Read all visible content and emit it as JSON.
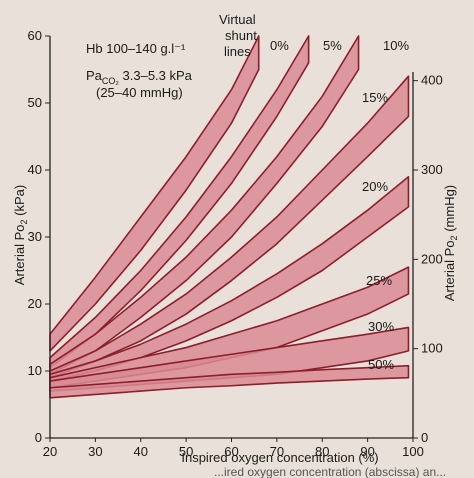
{
  "chart_data": {
    "type": "area",
    "annotations": {
      "hb": "Hb 100–140 g.l⁻¹",
      "paco2_prefix": "Pa",
      "paco2_sub": "CO₂",
      "paco2_value": " 3.3–5.3 kPa",
      "paco2_mmhg": "(25–40 mmHg)",
      "virtual_line1": "Virtual",
      "virtual_line2": "shunt",
      "virtual_line3": "lines"
    },
    "xlabel": "Inspired oxygen concentration (%)",
    "ylabel_left_prefix": "Arterial Po",
    "ylabel_left_sub": "2",
    "ylabel_left_suffix": " (kPa)",
    "ylabel_right_prefix": "Arterial Po",
    "ylabel_right_sub": "2",
    "ylabel_right_suffix": " (mmHg)",
    "caption": "...ired oxygen concentration (abscissa) an...",
    "xlim": [
      20,
      100
    ],
    "ylim_left": [
      0,
      60
    ],
    "ylim_right": [
      0,
      450
    ],
    "x_ticks": [
      "20",
      "30",
      "40",
      "50",
      "60",
      "70",
      "80",
      "90",
      "100"
    ],
    "y_left_ticks": [
      "0",
      "10",
      "20",
      "30",
      "40",
      "50",
      "60"
    ],
    "y_right_ticks": [
      "0",
      "100",
      "200",
      "300",
      "400"
    ],
    "band_color": "#d98a94",
    "band_edge": "#8c1f2c",
    "background": "#e9e1d9",
    "series": [
      {
        "name": "0%",
        "x": [
          20,
          30,
          40,
          50,
          60,
          66
        ],
        "upper": [
          15.5,
          24,
          33,
          42,
          52,
          60
        ],
        "lower": [
          13,
          20,
          28,
          37,
          47,
          55
        ]
      },
      {
        "name": "5%",
        "x": [
          20,
          30,
          40,
          50,
          60,
          70,
          77
        ],
        "upper": [
          12,
          18,
          25,
          33,
          42,
          52,
          60
        ],
        "lower": [
          10.5,
          15.5,
          22,
          29.5,
          38,
          48,
          56
        ]
      },
      {
        "name": "10%",
        "x": [
          20,
          30,
          40,
          50,
          60,
          70,
          80,
          88
        ],
        "upper": [
          11,
          15.5,
          21,
          27,
          34,
          42,
          51,
          60
        ],
        "lower": [
          9.5,
          13,
          18,
          23.5,
          30,
          38,
          46.5,
          55
        ]
      },
      {
        "name": "15%",
        "x": [
          20,
          30,
          40,
          50,
          60,
          70,
          80,
          90,
          99
        ],
        "upper": [
          10,
          13,
          17,
          21.5,
          27,
          33,
          40,
          47,
          54
        ],
        "lower": [
          9,
          11.5,
          14.5,
          18.5,
          23.5,
          29,
          35.5,
          42,
          48
        ]
      },
      {
        "name": "20%",
        "x": [
          20,
          30,
          40,
          50,
          60,
          70,
          80,
          90,
          99
        ],
        "upper": [
          9.5,
          11.5,
          14,
          17,
          20.5,
          24.5,
          29,
          34,
          39
        ],
        "lower": [
          8.5,
          10,
          12,
          14.5,
          17.5,
          21,
          25,
          30,
          34.5
        ]
      },
      {
        "name": "25%",
        "x": [
          20,
          30,
          40,
          50,
          60,
          70,
          80,
          90,
          99
        ],
        "upper": [
          9,
          10.5,
          12,
          13.5,
          15.5,
          17.5,
          20,
          22.5,
          25.5
        ],
        "lower": [
          7.5,
          8.5,
          9.5,
          10.5,
          12,
          13.5,
          16,
          18.5,
          21.5
        ]
      },
      {
        "name": "30%",
        "x": [
          20,
          30,
          40,
          50,
          60,
          70,
          80,
          90,
          99
        ],
        "upper": [
          8.5,
          9.5,
          10.5,
          11.5,
          12.5,
          13.5,
          14.5,
          15.5,
          16.5
        ],
        "lower": [
          7,
          7.5,
          8,
          8.5,
          9,
          9.5,
          10.5,
          11.5,
          13
        ]
      },
      {
        "name": "50%",
        "x": [
          20,
          30,
          40,
          50,
          60,
          70,
          80,
          90,
          99
        ],
        "upper": [
          7.5,
          8,
          8.5,
          9,
          9.5,
          9.8,
          10.2,
          10.5,
          10.8
        ],
        "lower": [
          6,
          6.5,
          7,
          7.5,
          7.8,
          8.2,
          8.5,
          8.8,
          9
        ]
      }
    ]
  }
}
